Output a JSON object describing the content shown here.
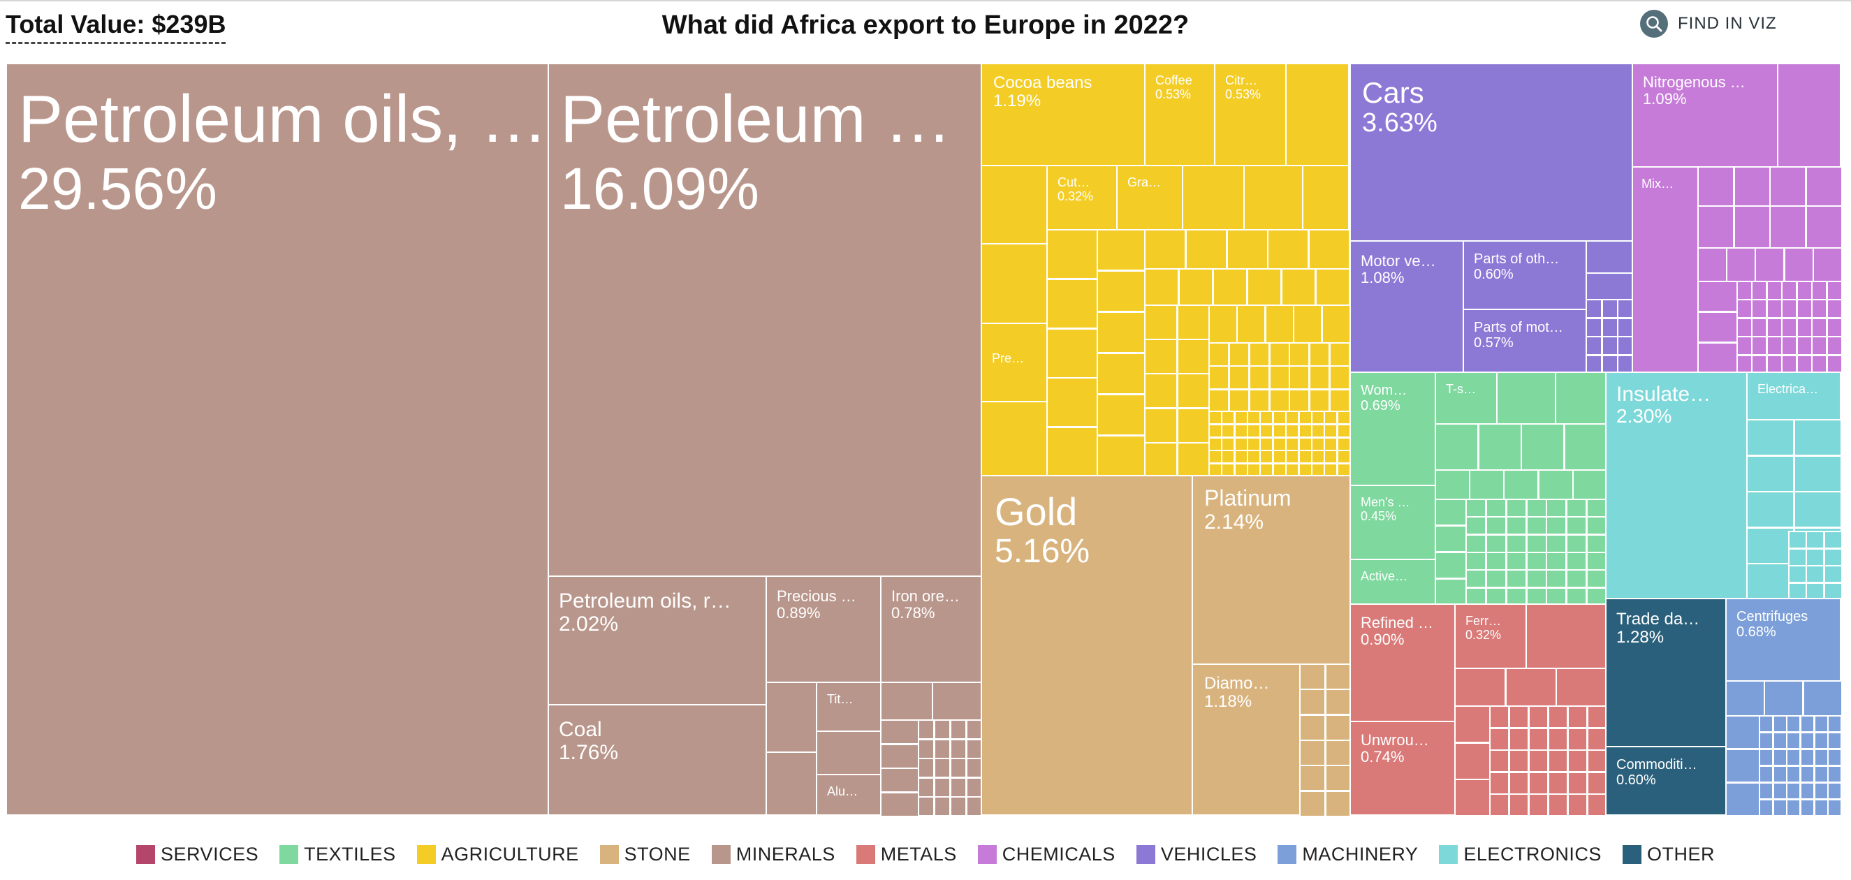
{
  "header": {
    "total_label": "Total Value: $239B",
    "title": "What did Africa export to Europe in 2022?",
    "find_label": "FIND IN VIZ"
  },
  "colors": {
    "SERVICES": "#b5466b",
    "TEXTILES": "#7fd89e",
    "AGRICULTURE": "#f3cd26",
    "STONE": "#d8b37d",
    "MINERALS": "#b9968b",
    "METALS": "#d97a78",
    "CHEMICALS": "#c77bd9",
    "VEHICLES": "#8c79d6",
    "MACHINERY": "#7c9fd9",
    "ELECTRONICS": "#7dd8d9",
    "OTHER": "#2a607c"
  },
  "legend": [
    "SERVICES",
    "TEXTILES",
    "AGRICULTURE",
    "STONE",
    "MINERALS",
    "METALS",
    "CHEMICALS",
    "VEHICLES",
    "MACHINERY",
    "ELECTRONICS",
    "OTHER"
  ],
  "chart_data": {
    "type": "treemap",
    "title": "What did Africa export to Europe in 2022?",
    "total": "$239B",
    "items": [
      {
        "name": "Petroleum oils, …",
        "share": "29.56%",
        "value": 29.56,
        "category": "MINERALS"
      },
      {
        "name": "Petroleum …",
        "share": "16.09%",
        "value": 16.09,
        "category": "MINERALS"
      },
      {
        "name": "Petroleum oils, r…",
        "share": "2.02%",
        "value": 2.02,
        "category": "MINERALS"
      },
      {
        "name": "Coal",
        "share": "1.76%",
        "value": 1.76,
        "category": "MINERALS"
      },
      {
        "name": "Precious …",
        "share": "0.89%",
        "value": 0.89,
        "category": "MINERALS"
      },
      {
        "name": "Iron ore…",
        "share": "0.78%",
        "value": 0.78,
        "category": "MINERALS"
      },
      {
        "name": "Tit…",
        "share": "",
        "value": 0.3,
        "category": "MINERALS"
      },
      {
        "name": "Alu…",
        "share": "",
        "value": 0.25,
        "category": "MINERALS"
      },
      {
        "name": "Cocoa beans",
        "share": "1.19%",
        "value": 1.19,
        "category": "AGRICULTURE"
      },
      {
        "name": "Coffee",
        "share": "0.53%",
        "value": 0.53,
        "category": "AGRICULTURE"
      },
      {
        "name": "Citr…",
        "share": "0.53%",
        "value": 0.53,
        "category": "AGRICULTURE"
      },
      {
        "name": "Cut…",
        "share": "0.32%",
        "value": 0.32,
        "category": "AGRICULTURE"
      },
      {
        "name": "Gra…",
        "share": "",
        "value": 0.3,
        "category": "AGRICULTURE"
      },
      {
        "name": "Pre…",
        "share": "",
        "value": 0.35,
        "category": "AGRICULTURE"
      },
      {
        "name": "Gold",
        "share": "5.16%",
        "value": 5.16,
        "category": "STONE"
      },
      {
        "name": "Platinum",
        "share": "2.14%",
        "value": 2.14,
        "category": "STONE"
      },
      {
        "name": "Diamo…",
        "share": "1.18%",
        "value": 1.18,
        "category": "STONE"
      },
      {
        "name": "Cars",
        "share": "3.63%",
        "value": 3.63,
        "category": "VEHICLES"
      },
      {
        "name": "Motor ve…",
        "share": "1.08%",
        "value": 1.08,
        "category": "VEHICLES"
      },
      {
        "name": "Parts of oth…",
        "share": "0.60%",
        "value": 0.6,
        "category": "VEHICLES"
      },
      {
        "name": "Parts of mot…",
        "share": "0.57%",
        "value": 0.57,
        "category": "VEHICLES"
      },
      {
        "name": "Nitrogenous …",
        "share": "1.09%",
        "value": 1.09,
        "category": "CHEMICALS"
      },
      {
        "name": "Mix…",
        "share": "",
        "value": 0.4,
        "category": "CHEMICALS"
      },
      {
        "name": "Wom…",
        "share": "0.69%",
        "value": 0.69,
        "category": "TEXTILES"
      },
      {
        "name": "T-s…",
        "share": "",
        "value": 0.3,
        "category": "TEXTILES"
      },
      {
        "name": "Men's …",
        "share": "0.45%",
        "value": 0.45,
        "category": "TEXTILES"
      },
      {
        "name": "Active…",
        "share": "",
        "value": 0.3,
        "category": "TEXTILES"
      },
      {
        "name": "Insulate…",
        "share": "2.30%",
        "value": 2.3,
        "category": "ELECTRONICS"
      },
      {
        "name": "Electrica…",
        "share": "",
        "value": 0.5,
        "category": "ELECTRONICS"
      },
      {
        "name": "Refined …",
        "share": "0.90%",
        "value": 0.9,
        "category": "METALS"
      },
      {
        "name": "Ferr…",
        "share": "0.32%",
        "value": 0.32,
        "category": "METALS"
      },
      {
        "name": "Unwrou…",
        "share": "0.74%",
        "value": 0.74,
        "category": "METALS"
      },
      {
        "name": "Trade da…",
        "share": "1.28%",
        "value": 1.28,
        "category": "OTHER"
      },
      {
        "name": "Commoditi…",
        "share": "0.60%",
        "value": 0.6,
        "category": "OTHER"
      },
      {
        "name": "Centrifuges",
        "share": "0.68%",
        "value": 0.68,
        "category": "MACHINERY"
      }
    ]
  }
}
